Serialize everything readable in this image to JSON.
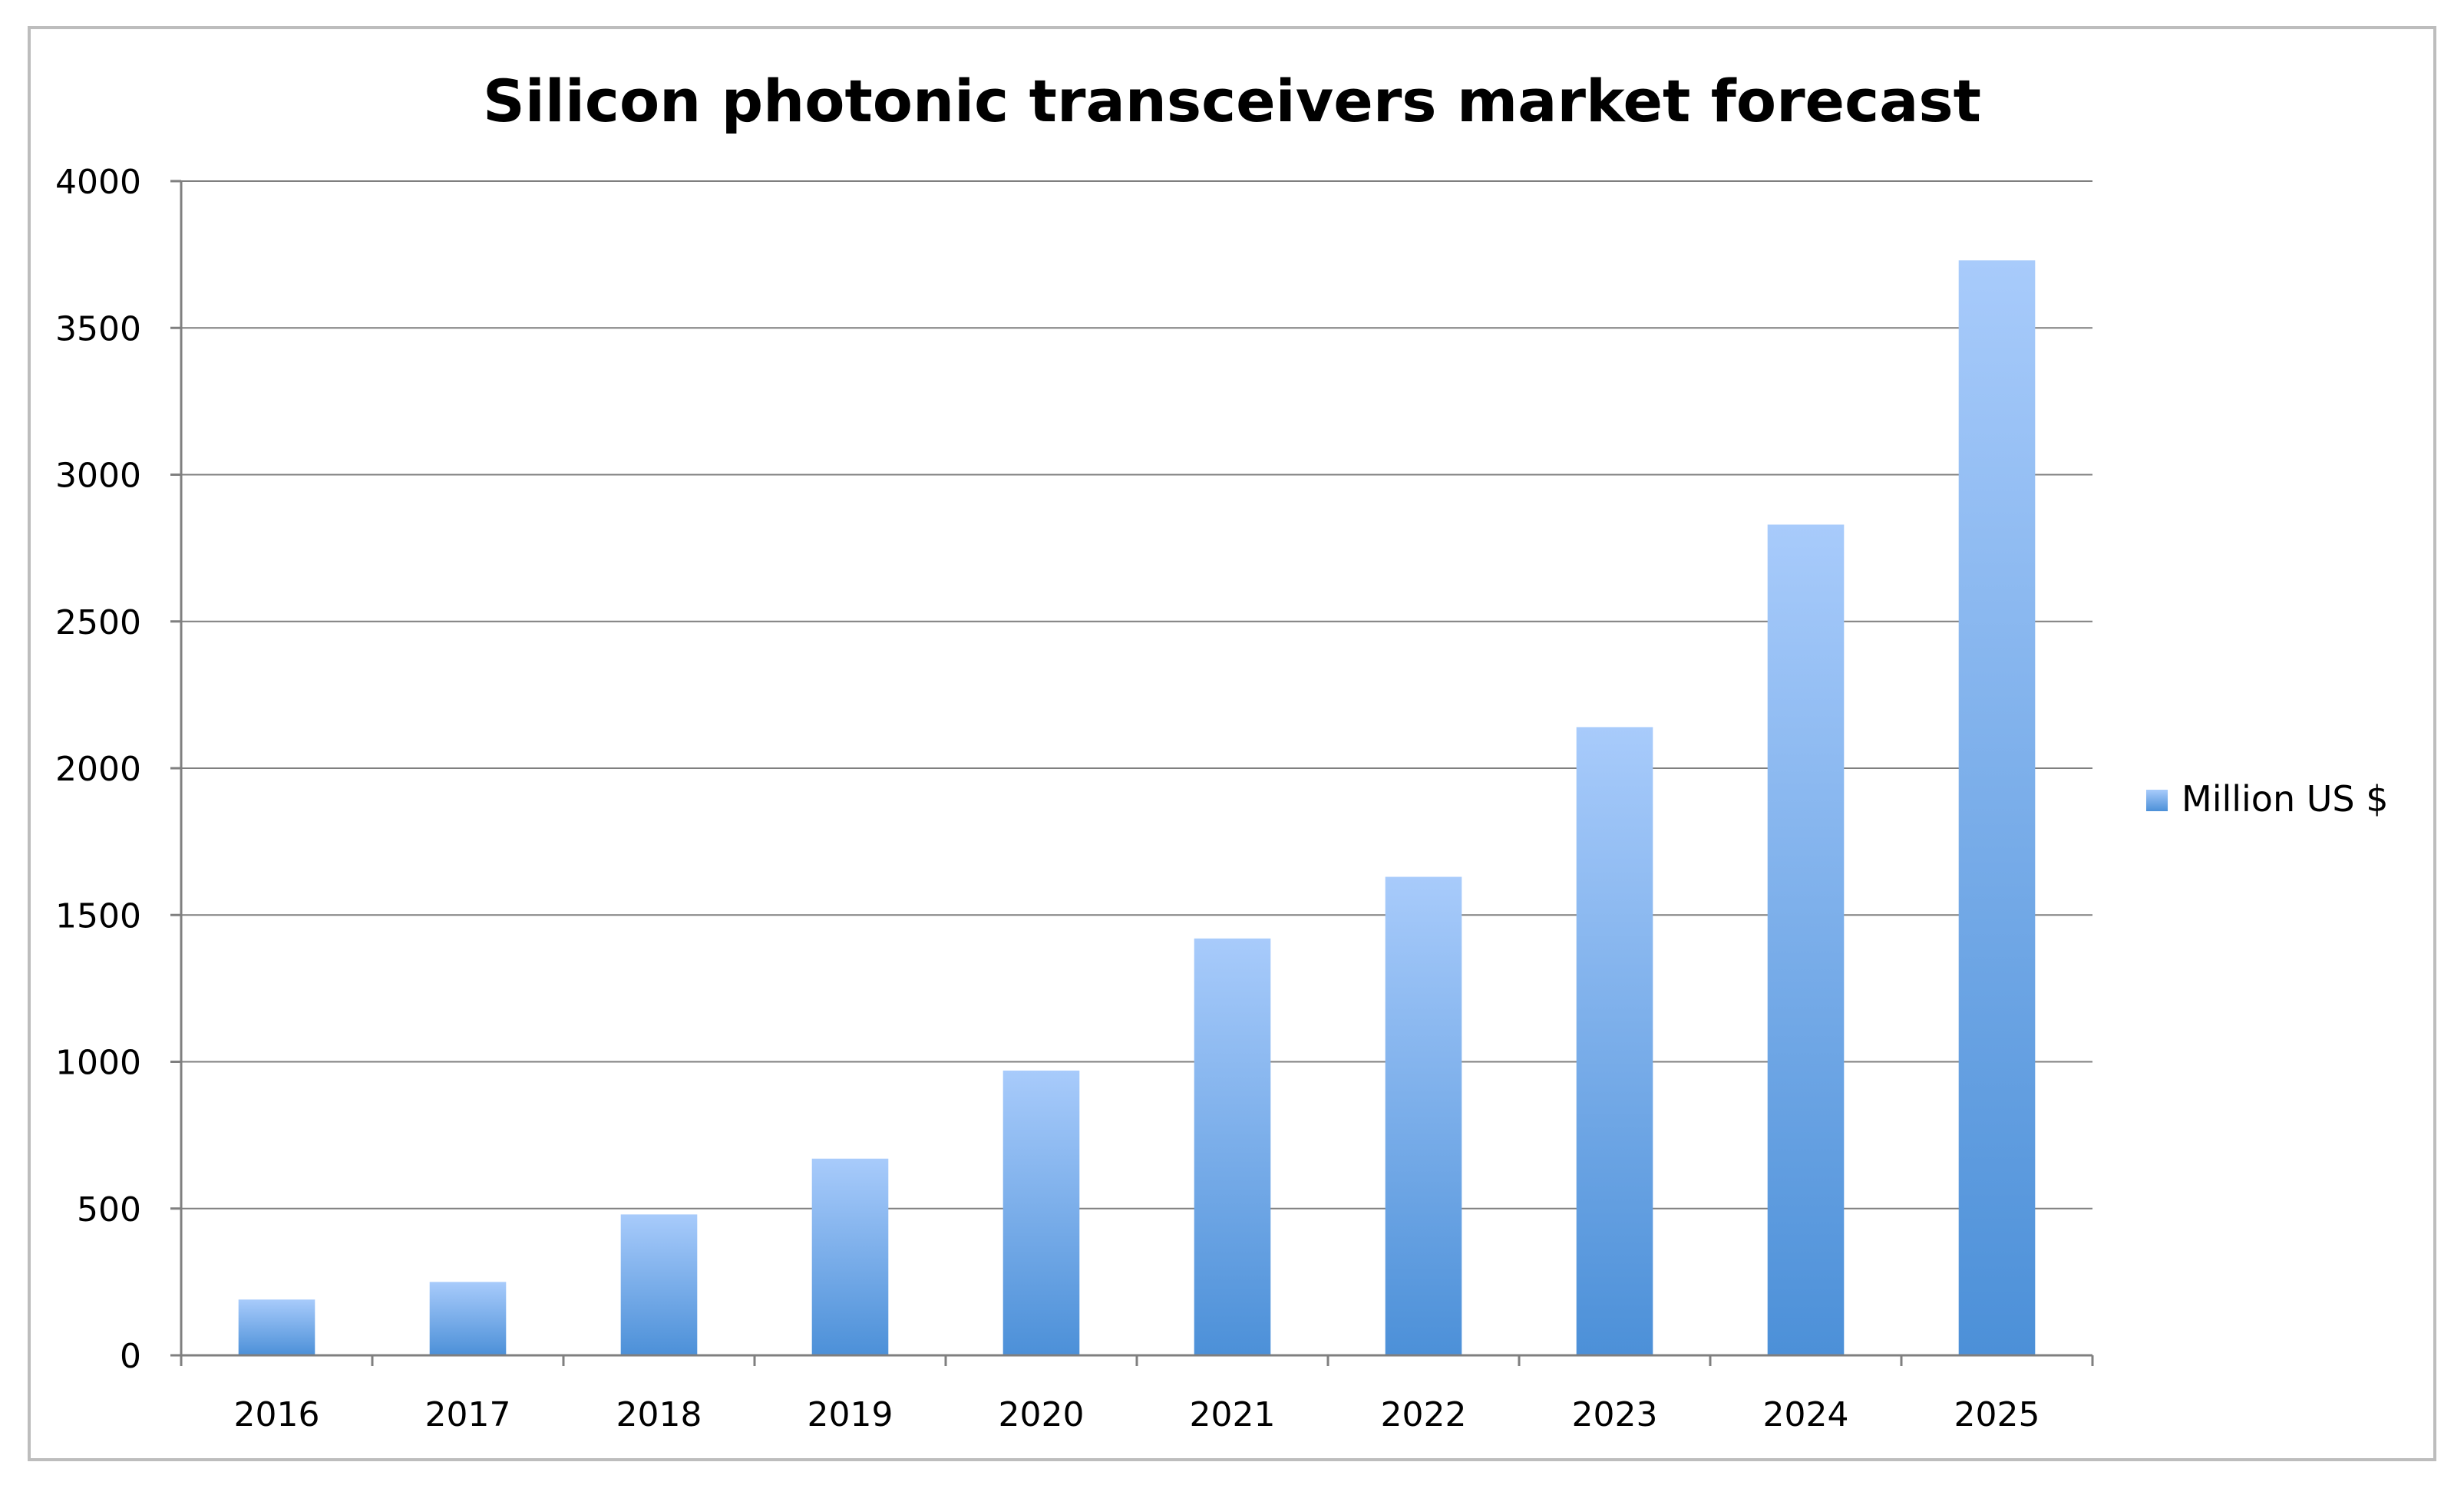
{
  "chart_data": {
    "type": "bar",
    "title": "Silicon photonic transceivers market forecast",
    "xlabel": "",
    "ylabel": "",
    "categories": [
      "2016",
      "2017",
      "2018",
      "2019",
      "2020",
      "2021",
      "2022",
      "2023",
      "2024",
      "2025"
    ],
    "series": [
      {
        "name": "Million US $",
        "values": [
          190,
          250,
          480,
          670,
          970,
          1420,
          1630,
          2140,
          2830,
          3730
        ]
      }
    ],
    "ylim": [
      0,
      4000
    ],
    "yticks": [
      "0",
      "500",
      "1000",
      "1500",
      "2000",
      "2500",
      "3000",
      "3500",
      "4000"
    ],
    "grid": true,
    "legend_position": "right",
    "colors": {
      "bar_top": "#a8cbfb",
      "bar_bottom": "#4c90d8",
      "grid": "#7f7f7f",
      "axis": "#7f7f7f",
      "frame": "#bdbdbd"
    }
  }
}
